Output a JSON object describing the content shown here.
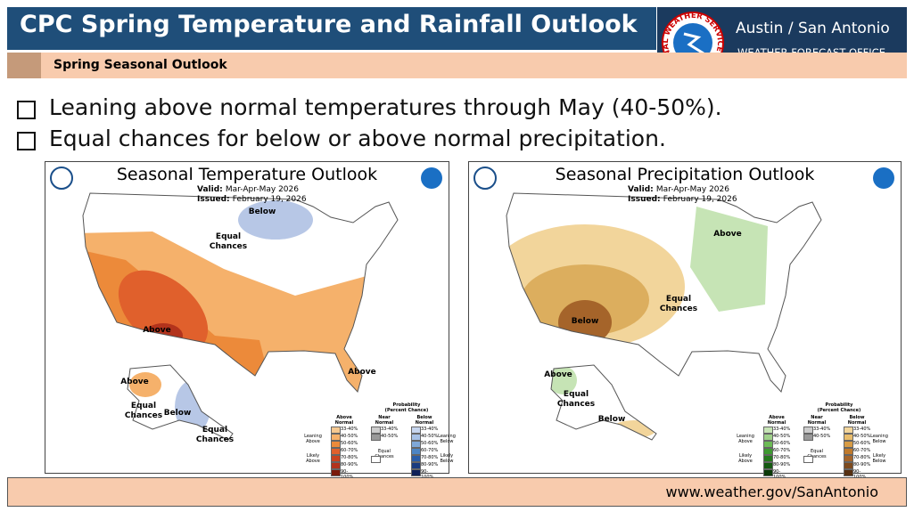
{
  "header": {
    "title": "CPC Spring Temperature and Rainfall Outlook",
    "subtitle": "Spring Seasonal Outlook",
    "office": "Austin / San Antonio",
    "office_sub": "WEATHER FORECAST OFFICE",
    "logo": "NATIONAL WEATHER SERVICE"
  },
  "bullets": [
    "Leaning above normal temperatures through May (40-50%).",
    "Equal chances for below or above normal precipitation."
  ],
  "maps": [
    {
      "title": "Seasonal Temperature Outlook",
      "valid_label": "Valid:",
      "valid": "Mar-Apr-May 2026",
      "issued_label": "Issued:",
      "issued": "February 19, 2026",
      "labels": [
        "Below",
        "Equal Chances",
        "Above",
        "Above",
        "Above",
        "Equal Chances",
        "Below",
        "Equal Chances"
      ],
      "legend": {
        "title": "Probability (Percent Chance)",
        "columns": [
          "Above Normal",
          "Near Normal",
          "Below Normal"
        ],
        "left": [
          "Leaning Above",
          "Likely Above"
        ],
        "middle": "Equal Chances",
        "right": [
          "Leaning Below",
          "Likely Below"
        ],
        "above": [
          "33-40%",
          "40-50%",
          "50-60%",
          "60-70%",
          "70-80%",
          "80-90%",
          "90-100%"
        ],
        "near": [
          "33-40%",
          "40-50%"
        ],
        "below": [
          "33-40%",
          "40-50%",
          "50-60%",
          "60-70%",
          "70-80%",
          "80-90%",
          "90-100%"
        ]
      }
    },
    {
      "title": "Seasonal Precipitation Outlook",
      "valid_label": "Valid:",
      "valid": "Mar-Apr-May 2026",
      "issued_label": "Issued:",
      "issued": "February 19, 2026",
      "labels": [
        "Above",
        "Below",
        "Equal Chances",
        "Above",
        "Equal Chances",
        "Below"
      ],
      "legend": {
        "title": "Probability (Percent Chance)",
        "columns": [
          "Above Normal",
          "Near Normal",
          "Below Normal"
        ],
        "left": [
          "Leaning Above",
          "Likely Above"
        ],
        "middle": "Equal Chances",
        "right": [
          "Leaning Below",
          "Likely Below"
        ],
        "above": [
          "33-40%",
          "40-50%",
          "50-60%",
          "60-70%",
          "70-80%",
          "80-90%",
          "90-100%"
        ],
        "near": [
          "33-40%",
          "40-50%"
        ],
        "below": [
          "33-40%",
          "40-50%",
          "50-60%",
          "60-70%",
          "70-80%",
          "80-90%",
          "90-100%"
        ]
      }
    }
  ],
  "footer": "www.weather.gov/SanAntonio"
}
